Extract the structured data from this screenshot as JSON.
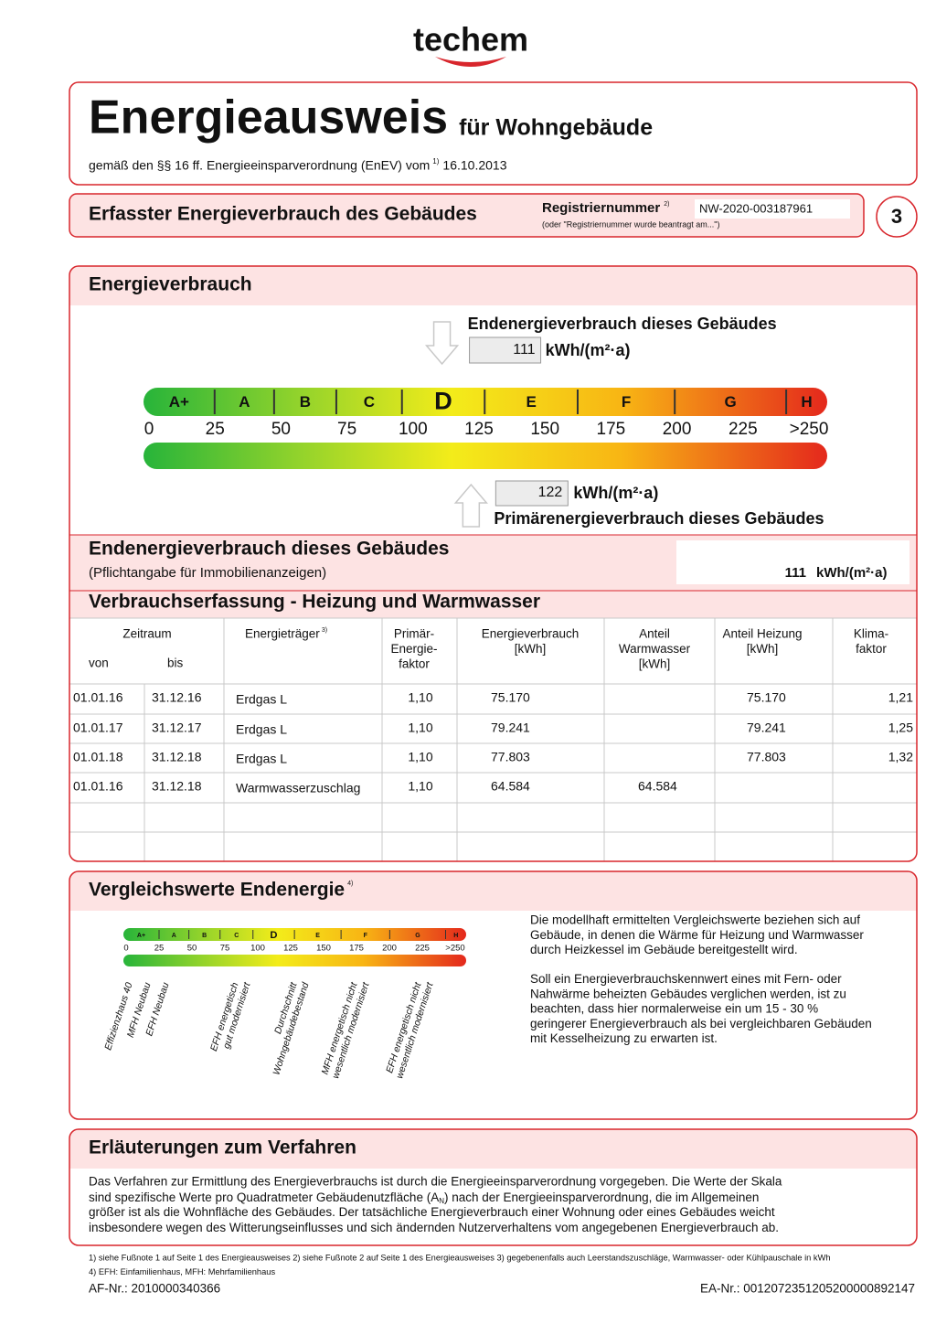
{
  "logo": "techem",
  "header": {
    "title": "Energieausweis",
    "subtitle": "für Wohngebäude",
    "legal": "gemäß den §§ 16 ff. Energieeinsparverordnung (EnEV) vom",
    "legal_note": "1)",
    "date": "16.10.2013"
  },
  "register": {
    "title": "Erfasster Energieverbrauch des Gebäudes",
    "label": "Registriernummer",
    "label_note": "2)",
    "number": "NW-2020-003187961",
    "hint": "(oder \"Registriernummer wurde beantragt am...\")",
    "page": "3"
  },
  "consumption": {
    "title": "Energieverbrauch",
    "final_label": "Endenergieverbrauch dieses Gebäudes",
    "final_value": 111,
    "unit": "kWh/(m²·a)",
    "primary_value": 122,
    "primary_label": "Primärenergieverbrauch dieses Gebäudes",
    "scale": {
      "classes": [
        "A+",
        "A",
        "B",
        "C",
        "D",
        "E",
        "F",
        "G",
        "H"
      ],
      "range": [
        0,
        250
      ],
      "ticks": [
        0,
        25,
        50,
        75,
        100,
        125,
        150,
        175,
        200,
        225,
        {
          "value": 250,
          "label": ">250"
        }
      ]
    }
  },
  "listing": {
    "title": "Endenergieverbrauch dieses Gebäudes",
    "note": "(Pflichtangabe für Immobilienanzeigen)",
    "value": 111,
    "unit": "kWh/(m²·a)"
  },
  "recording": {
    "title": "Verbrauchserfassung - Heizung und Warmwasser",
    "headers": {
      "period": "Zeitraum",
      "from": "von",
      "to": "bis",
      "carrier": "Energieträger",
      "carrier_note": "3)",
      "factor": [
        "Primär-",
        "Energie-",
        "faktor"
      ],
      "consumption": [
        "Energieverbrauch",
        "[kWh]"
      ],
      "hot_water": [
        "Anteil",
        "Warmwasser",
        "[kWh]"
      ],
      "heating": [
        "Anteil Heizung",
        "[kWh]"
      ],
      "climate": [
        "Klima-",
        "faktor"
      ]
    },
    "rows": [
      {
        "from": "01.01.16",
        "to": "31.12.16",
        "carrier": "Erdgas L",
        "factor": "1,10",
        "consumption": "75.170",
        "heating": "75.170",
        "climate": "1,21"
      },
      {
        "from": "01.01.17",
        "to": "31.12.17",
        "carrier": "Erdgas L",
        "factor": "1,10",
        "consumption": "79.241",
        "heating": "79.241",
        "climate": "1,25"
      },
      {
        "from": "01.01.18",
        "to": "31.12.18",
        "carrier": "Erdgas L",
        "factor": "1,10",
        "consumption": "77.803",
        "heating": "77.803",
        "climate": "1,32"
      },
      {
        "from": "01.01.16",
        "to": "31.12.18",
        "carrier": "Warmwasserzuschlag",
        "factor": "1,10",
        "consumption": "64.584",
        "hot_water": "64.584"
      }
    ]
  },
  "comparison": {
    "title": "Vergleichswerte Endenergie",
    "title_note": "4)",
    "references": [
      [
        "Effizienzhaus 40"
      ],
      [
        "MFH Neubau"
      ],
      [
        "EFH Neubau"
      ],
      [
        "EFH energetisch",
        "gut modernisiert"
      ],
      [
        "Durchschnitt",
        "Wohngebäudebestand"
      ],
      [
        "MFH energetisch nicht",
        "wesentlich modernisiert"
      ],
      [
        "EFH energetisch nicht",
        "wesentlich modernisiert"
      ]
    ],
    "paragraphs": [
      [
        "Die modellhaft ermittelten Vergleichswerte beziehen sich auf",
        "Gebäude, in denen die Wärme für Heizung und Warmwasser",
        "durch Heizkessel im Gebäude bereitgestellt wird."
      ],
      [
        "Soll ein Energieverbrauchskennwert eines mit Fern- oder",
        "Nahwärme beheizten Gebäudes verglichen werden, ist zu",
        "beachten, dass hier normalerweise ein um 15 - 30 %",
        "geringerer Energieverbrauch als bei vergleichbaren Gebäuden",
        "mit Kesselheizung zu erwarten ist."
      ]
    ]
  },
  "explanation": {
    "title": "Erläuterungen zum Verfahren",
    "lines": [
      "Das Verfahren zur Ermittlung des Energieverbrauchs ist durch die Energieeinsparverordnung vorgegeben. Die Werte der Skala",
      [
        "sind spezifische Werte pro Quadratmeter Gebäudenutzfläche (A",
        "N",
        ") nach der Energieeinsparverordnung, die im Allgemeinen"
      ],
      "größer ist als die Wohnfläche des Gebäudes. Der tatsächliche Energieverbrauch einer Wohnung oder eines Gebäudes weicht",
      "insbesondere wegen des Witterungseinflusses und sich ändernden Nutzerverhaltens vom angegebenen Energieverbrauch ab."
    ]
  },
  "footer": {
    "notes": [
      "1) siehe Fußnote 1 auf Seite 1 des Energieausweises   2) siehe Fußnote 2 auf Seite 1 des Energieausweises   3) gegebenenfalls auch Leerstandszuschläge, Warmwasser- oder Kühlpauschale in kWh",
      "4) EFH: Einfamilienhaus, MFH: Mehrfamilienhaus"
    ],
    "af": "AF-Nr.: 2010000340366",
    "ea": "EA-Nr.: 0012072351205200000892147"
  }
}
